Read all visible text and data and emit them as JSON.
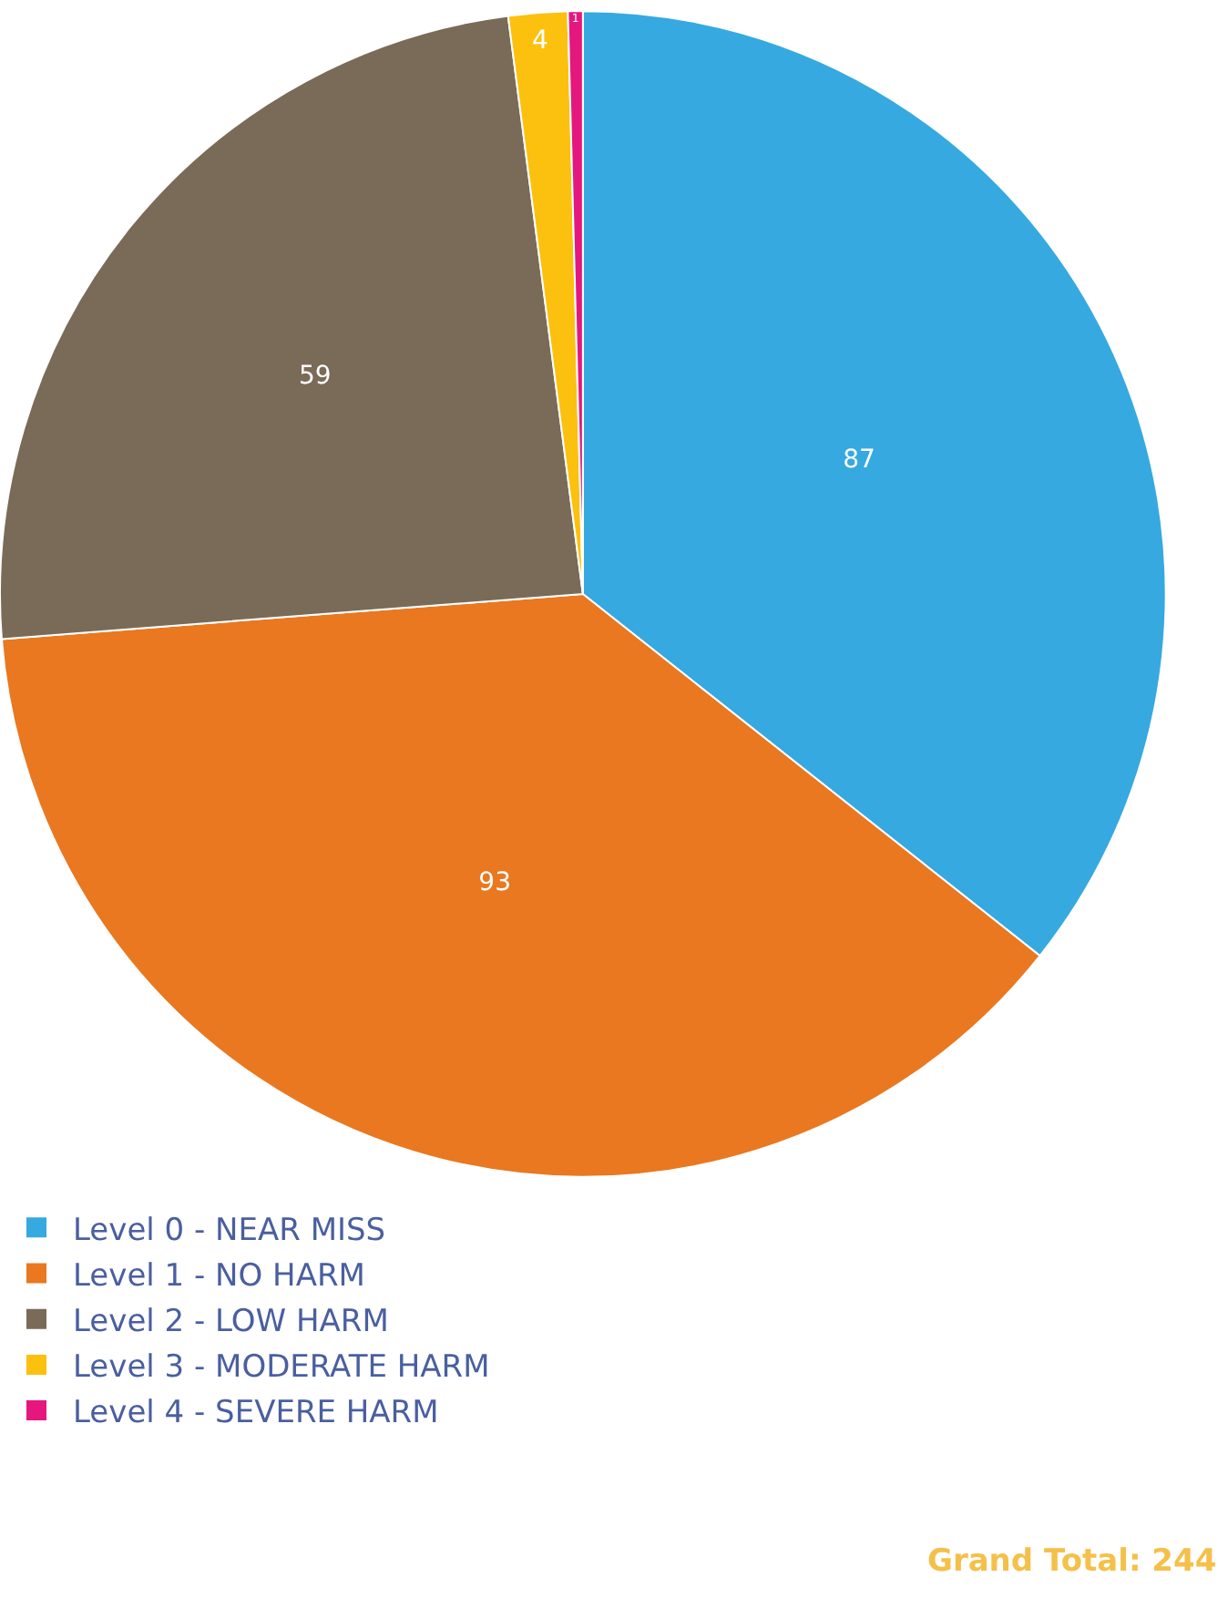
{
  "chart_data": {
    "type": "pie",
    "categories": [
      "Level 0 - NEAR MISS",
      "Level 1 - NO HARM",
      "Level 2 - LOW HARM",
      "Level 3 - MODERATE HARM",
      "Level 4 - SEVERE HARM"
    ],
    "values": [
      87,
      93,
      59,
      4,
      1
    ],
    "colors": [
      "#36a9e0",
      "#e97820",
      "#7a6a58",
      "#fcc10f",
      "#e5177e"
    ],
    "data_labels": true,
    "legend": "bottom left",
    "annotations": [
      "Grand Total: 244"
    ]
  }
}
